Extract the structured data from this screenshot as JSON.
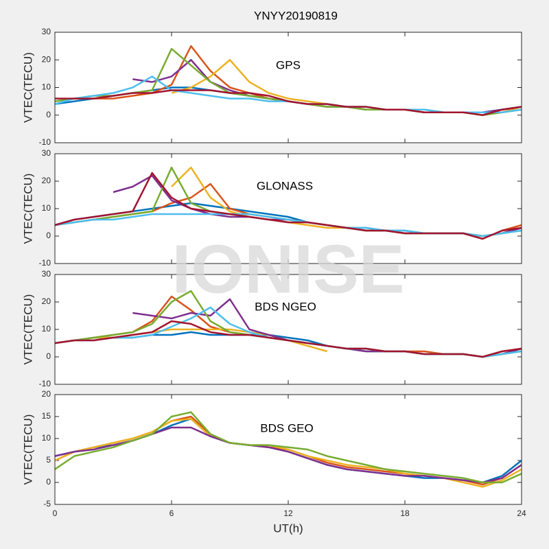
{
  "title": "YNYY20190819",
  "watermark": "IONISE",
  "chart_data": [
    {
      "type": "line",
      "annotation": "GPS",
      "ylabel": "VTEC(TECU)",
      "x": [
        0,
        1,
        2,
        3,
        4,
        5,
        6,
        7,
        8,
        9,
        10,
        11,
        12,
        13,
        14,
        15,
        16,
        17,
        18,
        19,
        20,
        21,
        22,
        23,
        24
      ],
      "xlim": [
        0,
        24
      ],
      "ylim": [
        -10,
        30
      ],
      "yticks": [
        -10,
        0,
        10,
        20,
        30
      ],
      "series": [
        {
          "color": "#0072BD",
          "values": [
            4,
            5,
            6,
            7,
            8,
            9,
            10,
            10,
            9,
            8,
            7,
            6,
            5,
            4,
            4,
            3,
            3,
            2,
            2,
            2,
            1,
            1,
            1,
            2,
            3
          ]
        },
        {
          "color": "#D95319",
          "values": [
            5,
            6,
            6,
            6,
            7,
            8,
            11,
            25,
            16,
            10,
            8,
            6,
            5,
            4,
            3,
            3,
            2,
            2,
            2,
            1,
            1,
            1,
            0,
            2,
            3
          ]
        },
        {
          "color": "#EDB120",
          "values": [
            null,
            null,
            null,
            null,
            null,
            null,
            8,
            10,
            14,
            20,
            12,
            8,
            6,
            5,
            4,
            3,
            3,
            2,
            2,
            1,
            1,
            1,
            0,
            1,
            3
          ]
        },
        {
          "color": "#7E2F8E",
          "values": [
            null,
            null,
            null,
            null,
            13,
            12,
            14,
            20,
            12,
            9,
            7,
            6,
            5,
            4,
            3,
            3,
            2,
            2,
            2,
            1,
            1,
            1,
            1,
            2,
            3
          ]
        },
        {
          "color": "#77AC30",
          "values": [
            5,
            6,
            7,
            7,
            8,
            9,
            24,
            18,
            12,
            8,
            7,
            6,
            5,
            4,
            3,
            3,
            2,
            2,
            2,
            1,
            1,
            1,
            0,
            1,
            2
          ]
        },
        {
          "color": "#4DBEEE",
          "values": [
            4,
            6,
            7,
            8,
            10,
            14,
            9,
            8,
            7,
            6,
            6,
            5,
            5,
            4,
            4,
            3,
            3,
            2,
            2,
            2,
            1,
            1,
            1,
            1,
            2
          ]
        },
        {
          "color": "#A2142F",
          "values": [
            6,
            6,
            6,
            7,
            8,
            8,
            9,
            9,
            9,
            8,
            8,
            7,
            5,
            4,
            4,
            3,
            3,
            2,
            2,
            1,
            1,
            1,
            0,
            2,
            3
          ]
        }
      ]
    },
    {
      "type": "line",
      "annotation": "GLONASS",
      "ylabel": "VTEC(TECU)",
      "x": [
        0,
        1,
        2,
        3,
        4,
        5,
        6,
        7,
        8,
        9,
        10,
        11,
        12,
        13,
        14,
        15,
        16,
        17,
        18,
        19,
        20,
        21,
        22,
        23,
        24
      ],
      "xlim": [
        0,
        24
      ],
      "ylim": [
        -10,
        30
      ],
      "yticks": [
        -10,
        0,
        10,
        20,
        30
      ],
      "series": [
        {
          "color": "#0072BD",
          "values": [
            4,
            6,
            7,
            8,
            9,
            10,
            11,
            12,
            11,
            10,
            9,
            8,
            7,
            5,
            4,
            3,
            3,
            2,
            2,
            1,
            1,
            1,
            0,
            1,
            3
          ]
        },
        {
          "color": "#D95319",
          "values": [
            4,
            5,
            6,
            7,
            8,
            9,
            12,
            14,
            19,
            10,
            8,
            7,
            6,
            5,
            4,
            3,
            2,
            2,
            1,
            1,
            1,
            1,
            -1,
            2,
            4
          ]
        },
        {
          "color": "#EDB120",
          "values": [
            null,
            null,
            null,
            null,
            null,
            null,
            18,
            25,
            14,
            9,
            7,
            6,
            5,
            4,
            3,
            3,
            2,
            2,
            1,
            1,
            1,
            1,
            0,
            1,
            3
          ]
        },
        {
          "color": "#7E2F8E",
          "values": [
            null,
            null,
            null,
            16,
            18,
            22,
            13,
            10,
            8,
            7,
            7,
            6,
            6,
            5,
            4,
            3,
            2,
            2,
            1,
            1,
            1,
            1,
            0,
            1,
            3
          ]
        },
        {
          "color": "#77AC30",
          "values": [
            4,
            5,
            6,
            7,
            8,
            9,
            25,
            12,
            9,
            8,
            8,
            7,
            6,
            5,
            4,
            3,
            2,
            2,
            1,
            1,
            1,
            1,
            0,
            1,
            2
          ]
        },
        {
          "color": "#4DBEEE",
          "values": [
            4,
            5,
            6,
            6,
            7,
            8,
            8,
            8,
            8,
            8,
            8,
            7,
            6,
            5,
            4,
            3,
            3,
            2,
            2,
            1,
            1,
            1,
            0,
            1,
            2
          ]
        },
        {
          "color": "#A2142F",
          "values": [
            4,
            6,
            7,
            8,
            9,
            23,
            14,
            10,
            9,
            8,
            7,
            6,
            5,
            5,
            4,
            3,
            2,
            2,
            1,
            1,
            1,
            1,
            -1,
            2,
            3
          ]
        }
      ]
    },
    {
      "type": "line",
      "annotation": "BDS NGEO",
      "ylabel": "VTEC(TECU)",
      "x": [
        0,
        1,
        2,
        3,
        4,
        5,
        6,
        7,
        8,
        9,
        10,
        11,
        12,
        13,
        14,
        15,
        16,
        17,
        18,
        19,
        20,
        21,
        22,
        23,
        24
      ],
      "xlim": [
        0,
        24
      ],
      "ylim": [
        -10,
        30
      ],
      "yticks": [
        -10,
        0,
        10,
        20,
        30
      ],
      "series": [
        {
          "color": "#0072BD",
          "values": [
            5,
            6,
            7,
            7,
            7,
            8,
            8,
            9,
            8,
            8,
            8,
            8,
            7,
            6,
            4,
            3,
            2,
            2,
            2,
            1,
            1,
            1,
            0,
            1,
            3
          ]
        },
        {
          "color": "#D95319",
          "values": [
            5,
            6,
            7,
            8,
            9,
            13,
            22,
            17,
            11,
            9,
            8,
            7,
            6,
            5,
            4,
            3,
            3,
            2,
            2,
            2,
            1,
            1,
            0,
            2,
            3
          ]
        },
        {
          "color": "#EDB120",
          "values": [
            5,
            6,
            7,
            7,
            8,
            9,
            10,
            10,
            10,
            10,
            9,
            8,
            6,
            4,
            2,
            null,
            null,
            null,
            null,
            null,
            null,
            null,
            null,
            null,
            null
          ]
        },
        {
          "color": "#7E2F8E",
          "values": [
            null,
            null,
            null,
            null,
            16,
            15,
            14,
            16,
            15,
            21,
            10,
            8,
            6,
            5,
            4,
            3,
            2,
            2,
            2,
            1,
            1,
            1,
            0,
            1,
            3
          ]
        },
        {
          "color": "#77AC30",
          "values": [
            5,
            6,
            7,
            8,
            9,
            12,
            20,
            24,
            13,
            9,
            8,
            7,
            6,
            5,
            4,
            3,
            3,
            2,
            2,
            1,
            1,
            1,
            0,
            1,
            2
          ]
        },
        {
          "color": "#4DBEEE",
          "values": [
            5,
            6,
            6,
            7,
            7,
            8,
            11,
            14,
            18,
            12,
            9,
            7,
            6,
            5,
            4,
            3,
            3,
            2,
            2,
            1,
            1,
            1,
            0,
            1,
            2
          ]
        },
        {
          "color": "#A2142F",
          "values": [
            5,
            6,
            6,
            7,
            8,
            9,
            13,
            12,
            9,
            8,
            8,
            7,
            6,
            5,
            4,
            3,
            3,
            2,
            2,
            1,
            1,
            1,
            0,
            2,
            3
          ]
        }
      ]
    },
    {
      "type": "line",
      "annotation": "BDS GEO",
      "ylabel": "VTEC(TECU)",
      "xlabel": "UT(h)",
      "x": [
        0,
        1,
        2,
        3,
        4,
        5,
        6,
        7,
        8,
        9,
        10,
        11,
        12,
        13,
        14,
        15,
        16,
        17,
        18,
        19,
        20,
        21,
        22,
        23,
        24
      ],
      "xlim": [
        0,
        24
      ],
      "ylim": [
        -5,
        20
      ],
      "yticks": [
        -5,
        0,
        5,
        10,
        15,
        20
      ],
      "xticks": [
        0,
        6,
        12,
        18,
        24
      ],
      "series": [
        {
          "color": "#0072BD",
          "values": [
            6,
            7,
            8,
            8.5,
            9.5,
            11,
            13,
            14.5,
            10.5,
            9,
            8.5,
            8,
            7,
            5.5,
            4,
            3,
            2.5,
            2,
            1.5,
            1,
            1,
            0.5,
            0,
            1.5,
            5
          ]
        },
        {
          "color": "#D95319",
          "values": [
            5,
            7,
            8,
            9,
            10,
            11.5,
            14,
            15,
            11,
            9,
            8.5,
            8,
            7.5,
            6,
            4.5,
            3.5,
            3,
            2.5,
            2,
            1.5,
            1,
            0.5,
            -0.5,
            1,
            4
          ]
        },
        {
          "color": "#EDB120",
          "values": [
            5,
            7,
            8,
            9,
            10,
            11.5,
            14,
            14.5,
            10.5,
            9,
            8.5,
            8.5,
            7.5,
            6,
            5,
            4,
            3.5,
            3,
            2,
            1.5,
            1,
            0,
            -1,
            0.5,
            3
          ]
        },
        {
          "color": "#7E2F8E",
          "values": [
            6,
            7,
            7.5,
            8.5,
            9.5,
            11,
            12.5,
            12.5,
            10.5,
            9,
            8.5,
            8,
            7,
            5.5,
            4,
            3,
            2.5,
            2,
            1.5,
            1.5,
            1,
            0.5,
            0,
            1,
            4
          ]
        },
        {
          "color": "#77AC30",
          "values": [
            3,
            6,
            7,
            8,
            9.5,
            11,
            15,
            16,
            11,
            9,
            8.5,
            8.5,
            8,
            7.5,
            6,
            5,
            4,
            3,
            2.5,
            2,
            1.5,
            1,
            0,
            0,
            2
          ]
        }
      ]
    }
  ]
}
